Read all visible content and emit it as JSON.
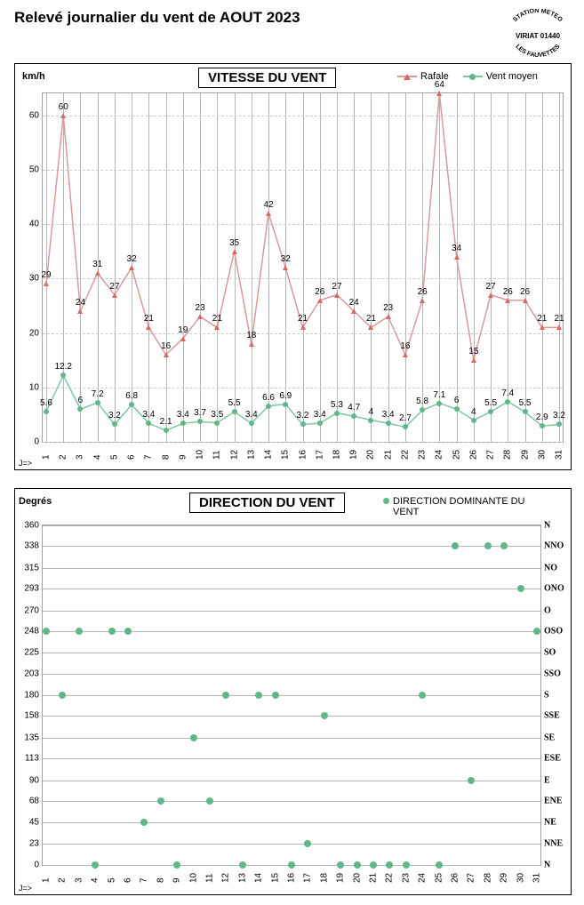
{
  "page_title": "Relevé journalier du vent de AOUT 2023",
  "station_stamp": {
    "line1": "STATION METEO",
    "line2": "VIRIAT 01440",
    "line3": "LES FAUVETTES"
  },
  "x_axis_arrow": "J=>",
  "days": [
    1,
    2,
    3,
    4,
    5,
    6,
    7,
    8,
    9,
    10,
    11,
    12,
    13,
    14,
    15,
    16,
    17,
    18,
    19,
    20,
    21,
    22,
    23,
    24,
    25,
    26,
    27,
    28,
    29,
    30,
    31
  ],
  "speed_chart": {
    "type": "line",
    "title": "VITESSE DU VENT",
    "y_unit": "km/h",
    "ylim": [
      0,
      64
    ],
    "yticks": [
      0,
      10,
      20,
      30,
      40,
      50,
      60
    ],
    "background_color": "#ffffff",
    "grid_color_v": "#b5b5b5",
    "grid_color_h": "#cccccc",
    "legend": {
      "rafale_label": "Rafale",
      "ventmoyen_label": "Vent moyen"
    },
    "series_rafale": {
      "color": "#d99a9a",
      "marker": "triangle",
      "marker_color": "#d66a6a",
      "line_width": 1.5,
      "values": [
        29,
        60,
        24,
        31,
        27,
        32,
        21,
        16,
        19,
        23,
        21,
        35,
        18,
        42,
        32,
        21,
        26,
        27,
        24,
        21,
        23,
        16,
        26,
        64,
        34,
        15,
        27,
        26,
        26,
        21,
        21
      ]
    },
    "series_ventmoyen": {
      "color": "#7fc7a3",
      "marker": "circle",
      "marker_color": "#60b78b",
      "line_width": 1.5,
      "values": [
        5.6,
        12.2,
        6,
        7.2,
        3.2,
        6.8,
        3.4,
        2.1,
        3.4,
        3.7,
        3.5,
        5.5,
        3.4,
        6.6,
        6.9,
        3.2,
        3.4,
        5.3,
        4.7,
        4,
        3.4,
        2.7,
        5.8,
        7.1,
        6,
        4,
        5.5,
        7.4,
        5.5,
        2.9,
        3.2
      ]
    }
  },
  "direction_chart": {
    "type": "scatter",
    "title": "DIRECTION DU VENT",
    "y_unit": "Degrés",
    "ylim": [
      0,
      360
    ],
    "yticks_left": [
      0,
      23,
      45,
      68,
      90,
      113,
      135,
      158,
      180,
      203,
      225,
      248,
      270,
      293,
      315,
      338,
      360
    ],
    "yticks_right_labels": [
      "N",
      "NNE",
      "NE",
      "ENE",
      "E",
      "ESE",
      "SE",
      "SSE",
      "S",
      "SSO",
      "SO",
      "OSO",
      "O",
      "ONO",
      "NO",
      "NNO",
      "N"
    ],
    "background_color": "#ffffff",
    "grid_color_h": "#b5b5b5",
    "legend_label": "DIRECTION DOMINANTE DU VENT",
    "series_direction": {
      "color": "#60b78b",
      "marker": "circle",
      "marker_color": "#60b78b",
      "values": [
        248,
        180,
        248,
        0,
        248,
        248,
        45,
        68,
        0,
        135,
        68,
        180,
        0,
        180,
        180,
        0,
        23,
        158,
        0,
        0,
        0,
        0,
        0,
        180,
        0,
        338,
        90,
        338,
        338,
        293,
        248
      ]
    }
  }
}
